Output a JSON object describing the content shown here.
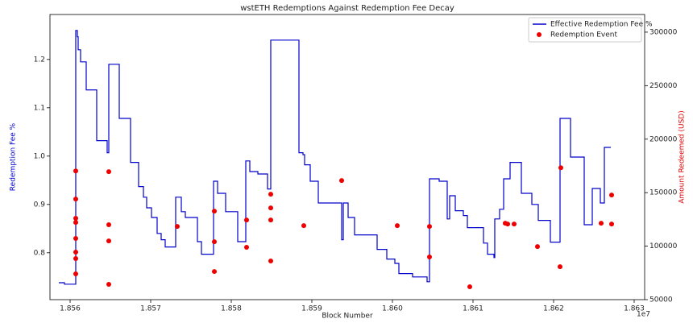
{
  "chart_data": {
    "type": "combo",
    "title": "wstETH Redemptions Against Redemption Fee Decay",
    "x_label": "Block Number",
    "y_label": "Redemption Fee %",
    "y2_label": "Amount Redeemed (USD)",
    "x_offset_label": "1e7",
    "xlim": [
      18557500,
      18631300
    ],
    "xticks": [
      {
        "value": 18560000,
        "label": "1.856"
      },
      {
        "value": 18570000,
        "label": "1.857"
      },
      {
        "value": 18580000,
        "label": "1.858"
      },
      {
        "value": 18590000,
        "label": "1.859"
      },
      {
        "value": 18600000,
        "label": "1.860"
      },
      {
        "value": 18610000,
        "label": "1.861"
      },
      {
        "value": 18620000,
        "label": "1.862"
      },
      {
        "value": 18630000,
        "label": "1.863"
      }
    ],
    "ylim": [
      0.703,
      1.293
    ],
    "yticks": [
      0.8,
      0.9,
      {
        "value": 1.0,
        "label": "1.0"
      },
      1.1,
      1.2
    ],
    "y2lim": [
      50000,
      316500
    ],
    "y2ticks": [
      50000,
      100000,
      150000,
      200000,
      250000,
      300000
    ],
    "y_label_color": "#0000cc",
    "y2_label_color": "#dd0000",
    "legend": "upper right",
    "series": [
      {
        "name": "Effective Redemption Fee %",
        "type": "line",
        "color": "#0000cc",
        "x": [
          18558600,
          18559300,
          18559300,
          18560600,
          18560700,
          18560700,
          18560900,
          18560900,
          18561000,
          18561000,
          18561300,
          18561300,
          18562000,
          18562000,
          18563300,
          18563300,
          18564600,
          18564600,
          18564800,
          18564800,
          18566100,
          18566100,
          18567500,
          18567500,
          18568500,
          18568500,
          18569100,
          18569100,
          18569500,
          18569500,
          18570100,
          18570100,
          18570800,
          18570800,
          18571300,
          18571300,
          18571800,
          18571800,
          18573100,
          18573100,
          18573800,
          18573800,
          18574300,
          18574300,
          18575800,
          18575800,
          18576300,
          18576300,
          18577800,
          18577800,
          18578300,
          18578300,
          18579300,
          18579300,
          18580800,
          18580800,
          18581800,
          18581800,
          18582300,
          18582300,
          18583300,
          18583300,
          18584500,
          18584500,
          18584900,
          18584900,
          18588400,
          18588400,
          18588900,
          18588900,
          18589100,
          18589100,
          18589800,
          18589800,
          18590800,
          18590800,
          18593700,
          18593700,
          18593900,
          18593900,
          18594500,
          18594500,
          18595300,
          18595300,
          18598100,
          18598100,
          18599300,
          18599300,
          18600300,
          18600300,
          18600800,
          18600800,
          18602500,
          18602500,
          18604300,
          18604300,
          18604600,
          18604600,
          18605800,
          18605800,
          18606800,
          18606800,
          18607100,
          18607100,
          18607800,
          18607800,
          18608800,
          18608800,
          18609300,
          18609300,
          18611300,
          18611300,
          18611800,
          18611800,
          18612600,
          18612600,
          18612700,
          18612700,
          18613300,
          18613300,
          18613800,
          18613800,
          18614600,
          18614600,
          18616000,
          18616000,
          18617300,
          18617300,
          18618100,
          18618100,
          18619600,
          18619600,
          18620800,
          18620800,
          18622100,
          18622100,
          18623800,
          18623800,
          18624800,
          18624800,
          18625800,
          18625800,
          18626300,
          18626300,
          18627100
        ],
        "values": [
          0.738,
          0.738,
          0.735,
          0.735,
          0.735,
          1.26,
          1.26,
          1.247,
          1.247,
          1.22,
          1.22,
          1.195,
          1.195,
          1.137,
          1.137,
          1.032,
          1.032,
          1.007,
          1.007,
          1.19,
          1.19,
          1.078,
          1.078,
          0.987,
          0.987,
          0.937,
          0.937,
          0.915,
          0.915,
          0.893,
          0.893,
          0.873,
          0.873,
          0.84,
          0.84,
          0.827,
          0.827,
          0.812,
          0.812,
          0.915,
          0.915,
          0.885,
          0.885,
          0.873,
          0.873,
          0.823,
          0.823,
          0.797,
          0.797,
          0.948,
          0.948,
          0.923,
          0.923,
          0.885,
          0.885,
          0.823,
          0.823,
          0.99,
          0.99,
          0.968,
          0.968,
          0.963,
          0.963,
          0.932,
          0.932,
          1.24,
          1.24,
          1.007,
          1.007,
          1.003,
          1.003,
          0.982,
          0.982,
          0.948,
          0.948,
          0.903,
          0.903,
          0.827,
          0.827,
          0.903,
          0.903,
          0.873,
          0.873,
          0.837,
          0.837,
          0.807,
          0.807,
          0.787,
          0.787,
          0.778,
          0.778,
          0.757,
          0.757,
          0.75,
          0.75,
          0.74,
          0.74,
          0.953,
          0.953,
          0.948,
          0.948,
          0.87,
          0.87,
          0.918,
          0.918,
          0.887,
          0.887,
          0.877,
          0.877,
          0.852,
          0.852,
          0.82,
          0.82,
          0.797,
          0.797,
          0.79,
          0.79,
          0.87,
          0.87,
          0.89,
          0.89,
          0.953,
          0.953,
          0.987,
          0.987,
          0.923,
          0.923,
          0.9,
          0.9,
          0.867,
          0.867,
          0.822,
          0.822,
          1.078,
          1.078,
          0.998,
          0.998,
          0.858,
          0.858,
          0.933,
          0.933,
          0.903,
          0.903,
          1.018,
          1.018
        ]
      },
      {
        "name": "Redemption Event",
        "type": "scatter",
        "axis": "y2",
        "color": "#ee0000",
        "x": [
          18560700,
          18560700,
          18560700,
          18560700,
          18560700,
          18560700,
          18560700,
          18560700,
          18564800,
          18564800,
          18564800,
          18564800,
          18573300,
          18577900,
          18577900,
          18577900,
          18581900,
          18581900,
          18584900,
          18584900,
          18584900,
          18584900,
          18589000,
          18593700,
          18600600,
          18604600,
          18604600,
          18609600,
          18614000,
          18614300,
          18615100,
          18618000,
          18620800,
          18620900,
          18625900,
          18627200,
          18627200
        ],
        "values": [
          170300,
          144000,
          126000,
          122200,
          107200,
          94400,
          88400,
          74100,
          169600,
          120000,
          104900,
          64300,
          118400,
          132700,
          104100,
          76300,
          124400,
          98900,
          148500,
          135700,
          124400,
          86100,
          119200,
          161300,
          119200,
          118400,
          89900,
          62000,
          121400,
          120700,
          120700,
          99600,
          80800,
          173300,
          121400,
          147800,
          120700
        ]
      }
    ]
  }
}
